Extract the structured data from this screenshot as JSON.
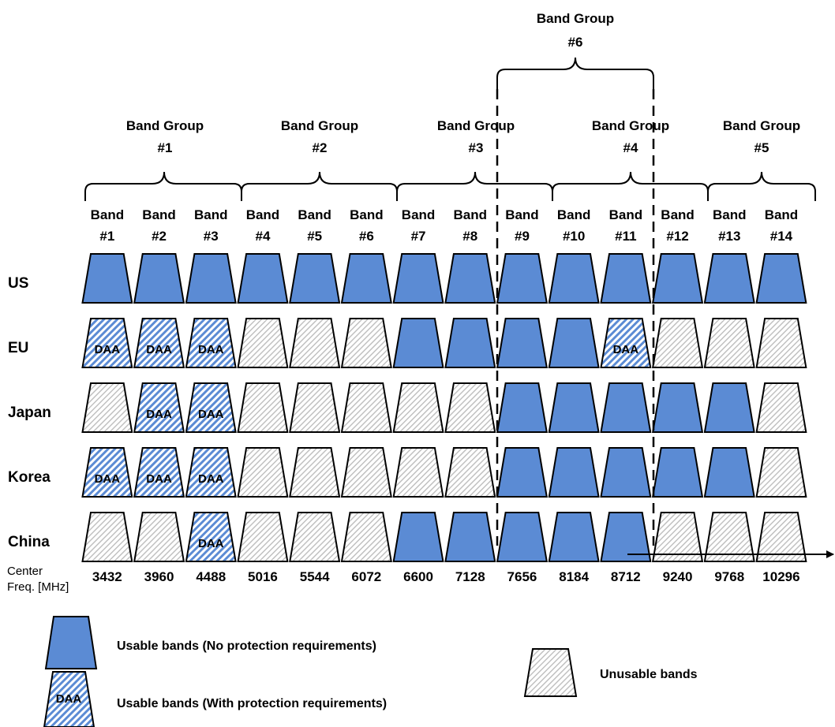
{
  "band_groups": [
    {
      "line1": "Band Group",
      "line2": "#1"
    },
    {
      "line1": "Band Group",
      "line2": "#2"
    },
    {
      "line1": "Band Group",
      "line2": "#3"
    },
    {
      "line1": "Band Group",
      "line2": "#4"
    },
    {
      "line1": "Band Group",
      "line2": "#5"
    },
    {
      "line1": "Band Group",
      "line2": "#6"
    }
  ],
  "bands": [
    {
      "line1": "Band",
      "line2": "#1",
      "freq": "3432"
    },
    {
      "line1": "Band",
      "line2": "#2",
      "freq": "3960"
    },
    {
      "line1": "Band",
      "line2": "#3",
      "freq": "4488"
    },
    {
      "line1": "Band",
      "line2": "#4",
      "freq": "5016"
    },
    {
      "line1": "Band",
      "line2": "#5",
      "freq": "5544"
    },
    {
      "line1": "Band",
      "line2": "#6",
      "freq": "6072"
    },
    {
      "line1": "Band",
      "line2": "#7",
      "freq": "6600"
    },
    {
      "line1": "Band",
      "line2": "#8",
      "freq": "7128"
    },
    {
      "line1": "Band",
      "line2": "#9",
      "freq": "7656"
    },
    {
      "line1": "Band",
      "line2": "#10",
      "freq": "8184"
    },
    {
      "line1": "Band",
      "line2": "#11",
      "freq": "8712"
    },
    {
      "line1": "Band",
      "line2": "#12",
      "freq": "9240"
    },
    {
      "line1": "Band",
      "line2": "#13",
      "freq": "9768"
    },
    {
      "line1": "Band",
      "line2": "#14",
      "freq": "10296"
    }
  ],
  "regions": [
    {
      "name": "US",
      "status": [
        "U",
        "U",
        "U",
        "U",
        "U",
        "U",
        "U",
        "U",
        "U",
        "U",
        "U",
        "U",
        "U",
        "U"
      ]
    },
    {
      "name": "EU",
      "status": [
        "D",
        "D",
        "D",
        "X",
        "X",
        "X",
        "U",
        "U",
        "U",
        "U",
        "D",
        "X",
        "X",
        "X"
      ]
    },
    {
      "name": "Japan",
      "status": [
        "X",
        "D",
        "D",
        "X",
        "X",
        "X",
        "X",
        "X",
        "U",
        "U",
        "U",
        "U",
        "U",
        "X"
      ]
    },
    {
      "name": "Korea",
      "status": [
        "D",
        "D",
        "D",
        "X",
        "X",
        "X",
        "X",
        "X",
        "U",
        "U",
        "U",
        "U",
        "U",
        "X"
      ]
    },
    {
      "name": "China",
      "status": [
        "X",
        "X",
        "D",
        "X",
        "X",
        "X",
        "U",
        "U",
        "U",
        "U",
        "U",
        "X",
        "X",
        "X"
      ]
    }
  ],
  "daa_label": "DAA",
  "freq_axis": {
    "line1": "Center",
    "line2": "Freq. [MHz]"
  },
  "legend": {
    "usable": "Usable bands (No protection requirements)",
    "usable_daa": "Usable bands (With protection requirements)",
    "unusable": "Unusable bands",
    "daa_label": "DAA"
  },
  "colors": {
    "usable_fill": "#5b8bd4",
    "daa_stripe": "#5b8bd4",
    "unusable_stripe": "#bdbdbd",
    "outline": "#000000"
  }
}
